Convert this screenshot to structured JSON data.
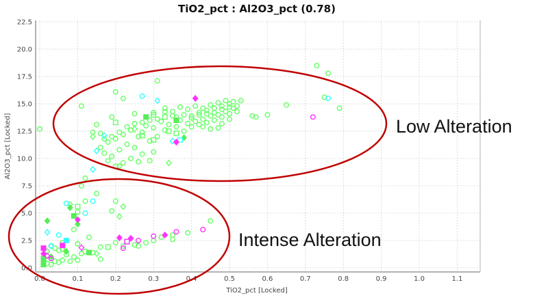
{
  "chart_data": {
    "type": "scatter",
    "title": "TiO2_pct : Al2O3_pct (0.78)",
    "xlabel": "TiO2_pct [Locked]",
    "ylabel": "Al2O3_pct [Locked]",
    "xlim": [
      0.0,
      1.15
    ],
    "ylim": [
      0.0,
      22.5
    ],
    "xticks": [
      "0.0",
      "0.1",
      "0.2",
      "0.3",
      "0.4",
      "0.5",
      "0.6",
      "0.7",
      "0.8",
      "0.9",
      "1.0",
      "1.1"
    ],
    "yticks": [
      "0.0",
      "2.5",
      "5.0",
      "7.5",
      "10.0",
      "12.5",
      "15.0",
      "17.5",
      "20.0",
      "22.5"
    ],
    "grid": true,
    "annotations": [
      "Low Alteration",
      "Intense Alteration"
    ],
    "annotation_color": "#c00000",
    "series": [
      {
        "color": "#66ff66",
        "marker": "circle-open",
        "points": [
          [
            0.73,
            18.5
          ],
          [
            0.76,
            17.8
          ],
          [
            0.75,
            15.6
          ],
          [
            0.79,
            14.6
          ],
          [
            0.31,
            17.1
          ],
          [
            0.2,
            16.1
          ],
          [
            0.22,
            15.5
          ],
          [
            0.6,
            14.0
          ],
          [
            0.57,
            13.8
          ],
          [
            0.56,
            13.9
          ],
          [
            0.65,
            14.9
          ],
          [
            0.0,
            12.7
          ],
          [
            0.11,
            14.8
          ],
          [
            0.19,
            13.8
          ],
          [
            0.25,
            14.1
          ],
          [
            0.3,
            14.2
          ],
          [
            0.33,
            14.3
          ],
          [
            0.36,
            13.8
          ],
          [
            0.38,
            14.0
          ],
          [
            0.4,
            13.7
          ],
          [
            0.42,
            14.2
          ],
          [
            0.44,
            14.4
          ],
          [
            0.46,
            14.6
          ],
          [
            0.48,
            14.8
          ],
          [
            0.5,
            15.0
          ],
          [
            0.51,
            15.2
          ],
          [
            0.49,
            15.3
          ],
          [
            0.47,
            15.1
          ],
          [
            0.45,
            14.9
          ],
          [
            0.43,
            13.6
          ],
          [
            0.41,
            13.4
          ],
          [
            0.39,
            13.2
          ],
          [
            0.37,
            13.5
          ],
          [
            0.35,
            13.9
          ],
          [
            0.34,
            13.1
          ],
          [
            0.32,
            13.4
          ],
          [
            0.3,
            12.8
          ],
          [
            0.28,
            13.0
          ],
          [
            0.27,
            12.4
          ],
          [
            0.26,
            12.0
          ],
          [
            0.24,
            12.6
          ],
          [
            0.22,
            12.2
          ],
          [
            0.2,
            11.8
          ],
          [
            0.18,
            11.5
          ],
          [
            0.16,
            11.0
          ],
          [
            0.17,
            10.5
          ],
          [
            0.19,
            10.2
          ],
          [
            0.21,
            10.8
          ],
          [
            0.23,
            11.3
          ],
          [
            0.25,
            11.0
          ],
          [
            0.27,
            10.4
          ],
          [
            0.29,
            11.6
          ],
          [
            0.31,
            12.0
          ],
          [
            0.33,
            12.6
          ],
          [
            0.36,
            12.9
          ],
          [
            0.38,
            12.5
          ],
          [
            0.4,
            12.9
          ],
          [
            0.42,
            13.1
          ],
          [
            0.44,
            13.3
          ],
          [
            0.46,
            13.5
          ],
          [
            0.48,
            13.8
          ],
          [
            0.5,
            14.1
          ],
          [
            0.52,
            14.3
          ],
          [
            0.5,
            13.6
          ],
          [
            0.48,
            13.2
          ],
          [
            0.45,
            12.7
          ],
          [
            0.43,
            12.9
          ],
          [
            0.47,
            12.8
          ],
          [
            0.52,
            14.8
          ],
          [
            0.53,
            15.3
          ],
          [
            0.51,
            14.6
          ],
          [
            0.49,
            14.3
          ],
          [
            0.47,
            14.0
          ],
          [
            0.45,
            13.9
          ],
          [
            0.43,
            14.6
          ],
          [
            0.41,
            14.8
          ],
          [
            0.39,
            14.5
          ],
          [
            0.37,
            14.7
          ],
          [
            0.35,
            14.3
          ],
          [
            0.33,
            14.6
          ],
          [
            0.31,
            13.6
          ],
          [
            0.29,
            13.5
          ],
          [
            0.27,
            13.3
          ],
          [
            0.25,
            13.2
          ],
          [
            0.23,
            12.9
          ],
          [
            0.21,
            12.4
          ],
          [
            0.19,
            12.0
          ],
          [
            0.17,
            11.8
          ],
          [
            0.16,
            12.3
          ],
          [
            0.18,
            9.8
          ],
          [
            0.2,
            9.3
          ],
          [
            0.22,
            9.6
          ],
          [
            0.24,
            10.0
          ],
          [
            0.26,
            9.7
          ],
          [
            0.29,
            9.8
          ],
          [
            0.3,
            10.6
          ],
          [
            0.14,
            12.4
          ],
          [
            0.15,
            13.1
          ],
          [
            0.4,
            13.9
          ],
          [
            0.42,
            14.0
          ],
          [
            0.44,
            14.1
          ],
          [
            0.46,
            14.2
          ],
          [
            0.48,
            14.5
          ],
          [
            0.5,
            14.7
          ],
          [
            0.12,
            8.2
          ],
          [
            0.11,
            7.5
          ],
          [
            0.15,
            6.8
          ],
          [
            0.2,
            6.1
          ],
          [
            0.19,
            5.2
          ],
          [
            0.12,
            6.1
          ],
          [
            0.1,
            5.1
          ],
          [
            0.09,
            3.5
          ],
          [
            0.13,
            2.8
          ],
          [
            0.1,
            2.2
          ],
          [
            0.06,
            2.3
          ],
          [
            0.04,
            1.8
          ],
          [
            0.03,
            2.0
          ],
          [
            0.05,
            1.6
          ],
          [
            0.07,
            1.2
          ],
          [
            0.09,
            1.0
          ],
          [
            0.11,
            1.3
          ],
          [
            0.12,
            1.5
          ],
          [
            0.14,
            1.4
          ],
          [
            0.16,
            1.9
          ],
          [
            0.16,
            0.8
          ],
          [
            0.08,
            0.6
          ],
          [
            0.1,
            0.7
          ],
          [
            0.05,
            0.5
          ],
          [
            0.02,
            0.4
          ],
          [
            0.04,
            0.6
          ],
          [
            0.06,
            0.7
          ],
          [
            0.03,
            0.3
          ],
          [
            0.2,
            2.3
          ],
          [
            0.22,
            2.0
          ],
          [
            0.25,
            2.1
          ],
          [
            0.26,
            2.0
          ],
          [
            0.28,
            2.3
          ],
          [
            0.3,
            2.5
          ],
          [
            0.32,
            2.8
          ],
          [
            0.35,
            2.6
          ],
          [
            0.35,
            3.0
          ],
          [
            0.39,
            3.2
          ],
          [
            0.45,
            4.3
          ],
          [
            0.01,
            1.0
          ],
          [
            0.01,
            0.6
          ]
        ]
      },
      {
        "color": "#66ff66",
        "marker": "diamond-open",
        "points": [
          [
            0.14,
            12.0
          ],
          [
            0.22,
            5.6
          ],
          [
            0.21,
            4.7
          ],
          [
            0.08,
            5.8
          ],
          [
            0.15,
            1.3
          ],
          [
            0.02,
            1.5
          ],
          [
            0.06,
            1.7
          ],
          [
            0.25,
            12.7
          ],
          [
            0.34,
            9.6
          ],
          [
            0.21,
            9.3
          ]
        ]
      },
      {
        "color": "#66ff66",
        "marker": "square-open",
        "points": [
          [
            0.2,
            13.3
          ],
          [
            0.3,
            14.0
          ],
          [
            0.33,
            13.8
          ],
          [
            0.34,
            12.5
          ],
          [
            0.27,
            12.1
          ],
          [
            0.3,
            11.7
          ],
          [
            0.36,
            12.3
          ],
          [
            0.1,
            5.6
          ],
          [
            0.18,
            1.9
          ],
          [
            0.23,
            2.4
          ]
        ]
      },
      {
        "color": "#55ee55",
        "marker": "diamond-filled",
        "points": [
          [
            0.02,
            4.3
          ],
          [
            0.08,
            5.5
          ],
          [
            0.1,
            4.0
          ],
          [
            0.07,
            1.5
          ],
          [
            0.03,
            1.0
          ],
          [
            0.38,
            11.9
          ]
        ]
      },
      {
        "color": "#55ee55",
        "marker": "square-filled",
        "points": [
          [
            0.09,
            4.75
          ],
          [
            0.13,
            1.4
          ],
          [
            0.01,
            0.3
          ],
          [
            0.01,
            0.8
          ],
          [
            0.28,
            13.8
          ],
          [
            0.36,
            13.5
          ]
        ]
      },
      {
        "color": "#33ffff",
        "marker": "circle-open",
        "points": [
          [
            0.76,
            15.5
          ],
          [
            0.27,
            15.7
          ],
          [
            0.07,
            5.9
          ],
          [
            0.14,
            6.1
          ],
          [
            0.12,
            5.0
          ],
          [
            0.05,
            3.0
          ]
        ]
      },
      {
        "color": "#33ffff",
        "marker": "diamond-open",
        "points": [
          [
            0.31,
            15.3
          ],
          [
            0.15,
            10.7
          ],
          [
            0.35,
            11.6
          ],
          [
            0.17,
            12.1
          ],
          [
            0.14,
            9.0
          ],
          [
            0.02,
            3.25
          ],
          [
            0.03,
            2.0
          ]
        ]
      },
      {
        "color": "#33ffff",
        "marker": "square-open",
        "points": [
          [
            0.37,
            11.7
          ]
        ]
      },
      {
        "color": "#33ffff",
        "marker": "square-filled",
        "points": [
          [
            0.07,
            2.5
          ]
        ]
      },
      {
        "color": "#ff33ff",
        "marker": "circle-open",
        "points": [
          [
            0.72,
            13.8
          ],
          [
            0.22,
            1.8
          ],
          [
            0.26,
            2.5
          ],
          [
            0.3,
            2.9
          ],
          [
            0.36,
            3.3
          ],
          [
            0.43,
            3.5
          ],
          [
            0.03,
            0.85
          ]
        ]
      },
      {
        "color": "#ff33ff",
        "marker": "diamond-filled",
        "points": [
          [
            0.41,
            15.5
          ],
          [
            0.36,
            11.5
          ],
          [
            0.1,
            4.4
          ],
          [
            0.21,
            2.75
          ],
          [
            0.24,
            2.7
          ],
          [
            0.33,
            3.0
          ],
          [
            0.01,
            1.3
          ]
        ]
      },
      {
        "color": "#ff33ff",
        "marker": "diamond-open",
        "points": [
          [
            0.11,
            1.85
          ],
          [
            0.02,
            1.1
          ]
        ]
      },
      {
        "color": "#ff33ff",
        "marker": "square-open",
        "points": [
          [
            0.23,
            2.4
          ]
        ]
      },
      {
        "color": "#ff33ff",
        "marker": "square-filled",
        "points": [
          [
            0.01,
            1.8
          ],
          [
            0.06,
            2.05
          ]
        ]
      }
    ]
  }
}
